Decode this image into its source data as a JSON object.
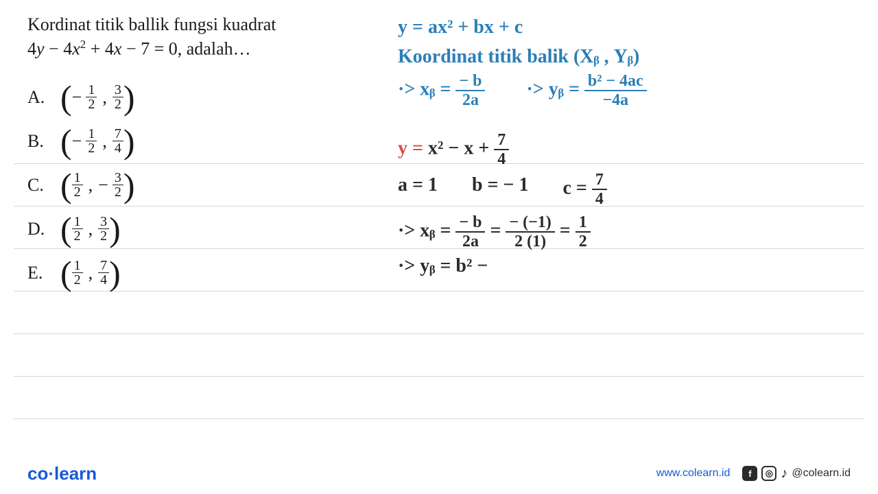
{
  "problem": {
    "title": "Kordinat titik ballik fungsi kuadrat",
    "equation_html": "4<i>y</i> − 4<i>x</i><sup>2</sup> + 4<i>x</i> − 7 = 0, adalah…"
  },
  "options": [
    {
      "letter": "A.",
      "neg1": "−",
      "n1": "1",
      "d1": "2",
      "neg2": "",
      "n2": "3",
      "d2": "2"
    },
    {
      "letter": "B.",
      "neg1": "−",
      "n1": "1",
      "d1": "2",
      "neg2": "",
      "n2": "7",
      "d2": "4"
    },
    {
      "letter": "C.",
      "neg1": "",
      "n1": "1",
      "d1": "2",
      "neg2": "−",
      "n2": "3",
      "d2": "2"
    },
    {
      "letter": "D.",
      "neg1": "",
      "n1": "1",
      "d1": "2",
      "neg2": "",
      "n2": "3",
      "d2": "2"
    },
    {
      "letter": "E.",
      "neg1": "",
      "n1": "1",
      "d1": "2",
      "neg2": "",
      "n2": "7",
      "d2": "4"
    }
  ],
  "formulas": {
    "general": "y = ax² + bx + c",
    "vertex_label": "Koordinat titik balik (Xᵦ , Yᵦ)",
    "xb_prefix": "·> xᵦ =",
    "xb_num": "− b",
    "xb_den": "2a",
    "yb_prefix": "·> yᵦ =",
    "yb_num": "b² − 4ac",
    "yb_den": "−4a"
  },
  "work": {
    "rearranged_prefix": "y = ",
    "rearranged_rest": "x² − x + ",
    "rf_num": "7",
    "rf_den": "4",
    "a": "a = 1",
    "b": "b = − 1",
    "c_prefix": "c = ",
    "c_num": "7",
    "c_den": "4",
    "xb_calc_prefix": "·> xᵦ = ",
    "xb1_num": "− b",
    "xb1_den": "2a",
    "xb2_num": "− (−1)",
    "xb2_den": "2 (1)",
    "xb3_num": "1",
    "xb3_den": "2",
    "yb_partial": "·> yᵦ =  b² −"
  },
  "footer": {
    "logo_left": "co",
    "logo_right": "learn",
    "site": "www.colearn.id",
    "handle": "@colearn.id"
  },
  "colors": {
    "blue": "#2a7fb8",
    "red": "#d94a4a",
    "text": "#1a1a1a",
    "rule": "#d6d6d6",
    "brand": "#1859d6"
  },
  "rule_positions": [
    238,
    300,
    362,
    424,
    486,
    548,
    610
  ]
}
